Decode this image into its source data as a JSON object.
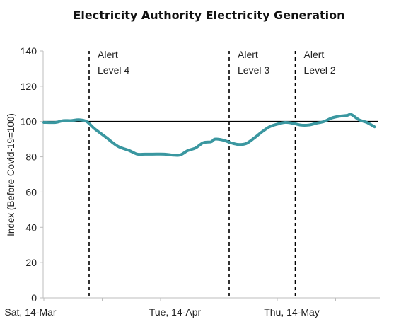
{
  "chart_data": {
    "type": "line",
    "title": "Electricity Authority Electricity Generation",
    "ylabel": "Index (Before Covid-19=100)",
    "xlabel": "",
    "ylim": [
      0,
      140
    ],
    "yticks": [
      0,
      20,
      40,
      60,
      80,
      100,
      120,
      140
    ],
    "x_start": "Sat, 14-Mar",
    "x_ticks": [
      {
        "day": 0,
        "label": "Sat, 14-Mar"
      },
      {
        "day": 31,
        "label": "Tue, 14-Apr"
      },
      {
        "day": 61,
        "label": "Thu, 14-May"
      }
    ],
    "xlim": [
      0,
      87
    ],
    "reference_line": 100,
    "alerts": [
      {
        "day": 12,
        "label_line1": "Alert",
        "label_line2": "Level 4"
      },
      {
        "day": 48,
        "label_line1": "Alert",
        "label_line2": "Level 3"
      },
      {
        "day": 65,
        "label_line1": "Alert",
        "label_line2": "Level 2"
      }
    ],
    "series": [
      {
        "values": [
          [
            0,
            99.5
          ],
          [
            3,
            99.5
          ],
          [
            5,
            100.5
          ],
          [
            7,
            100.5
          ],
          [
            9,
            101
          ],
          [
            11,
            100
          ],
          [
            13,
            96
          ],
          [
            16,
            91
          ],
          [
            19,
            86
          ],
          [
            22,
            83.5
          ],
          [
            24,
            81.5
          ],
          [
            26,
            81.5
          ],
          [
            28,
            81.5
          ],
          [
            31,
            81.5
          ],
          [
            33,
            81
          ],
          [
            35,
            81
          ],
          [
            37,
            83.5
          ],
          [
            39,
            85
          ],
          [
            41,
            88
          ],
          [
            43,
            88.5
          ],
          [
            44,
            90
          ],
          [
            46,
            89.5
          ],
          [
            48,
            88
          ],
          [
            50,
            87
          ],
          [
            52,
            87.5
          ],
          [
            54,
            90.5
          ],
          [
            56,
            94
          ],
          [
            58,
            97
          ],
          [
            60,
            98.5
          ],
          [
            62,
            99.5
          ],
          [
            64,
            99
          ],
          [
            66,
            98
          ],
          [
            68,
            98
          ],
          [
            70,
            99
          ],
          [
            72,
            100
          ],
          [
            74,
            102
          ],
          [
            76,
            103
          ],
          [
            78,
            103.5
          ],
          [
            79,
            104
          ],
          [
            81,
            101
          ],
          [
            83,
            99.5
          ],
          [
            85,
            97
          ]
        ]
      }
    ],
    "colors": {
      "series": "#3a97a0",
      "axis": "#bdbdbd",
      "reference": "#000000"
    }
  }
}
